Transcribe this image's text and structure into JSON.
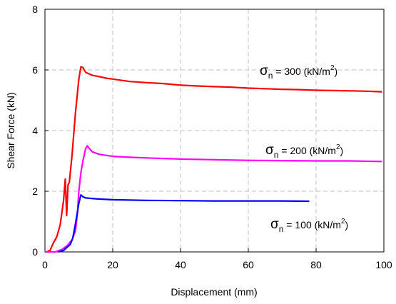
{
  "chart_data": {
    "type": "line",
    "title": "",
    "xlabel": "Displacement (mm)",
    "ylabel": "Shear Force (kN)",
    "xlim": [
      0,
      100
    ],
    "ylim": [
      0,
      8
    ],
    "xticks": [
      "0",
      "20",
      "40",
      "60",
      "80",
      "100"
    ],
    "yticks": [
      "0",
      "2",
      "4",
      "6",
      "8"
    ],
    "grid": true,
    "series": [
      {
        "annotation": {
          "symbol": "σ",
          "subscript": "n",
          "text": " = 300 (kN/m",
          "sup": "2",
          "close": ")"
        },
        "color": "#ff0000",
        "points": [
          [
            0.5,
            0
          ],
          [
            1.5,
            0.05
          ],
          [
            2.5,
            0.3
          ],
          [
            3.5,
            0.5
          ],
          [
            4.5,
            0.9
          ],
          [
            5.5,
            1.7
          ],
          [
            6.0,
            2.4
          ],
          [
            6.4,
            1.2
          ],
          [
            6.8,
            2.2
          ],
          [
            7.2,
            2.3
          ],
          [
            8,
            3.2
          ],
          [
            9,
            4.6
          ],
          [
            10,
            5.7
          ],
          [
            10.6,
            6.1
          ],
          [
            11.2,
            6.08
          ],
          [
            12,
            5.92
          ],
          [
            14,
            5.82
          ],
          [
            16,
            5.78
          ],
          [
            18,
            5.73
          ],
          [
            20,
            5.7
          ],
          [
            25,
            5.62
          ],
          [
            30,
            5.58
          ],
          [
            35,
            5.55
          ],
          [
            40,
            5.5
          ],
          [
            45,
            5.47
          ],
          [
            50,
            5.45
          ],
          [
            55,
            5.43
          ],
          [
            60,
            5.4
          ],
          [
            65,
            5.38
          ],
          [
            70,
            5.36
          ],
          [
            75,
            5.35
          ],
          [
            80,
            5.33
          ],
          [
            85,
            5.32
          ],
          [
            90,
            5.31
          ],
          [
            95,
            5.3
          ],
          [
            99.5,
            5.28
          ]
        ]
      },
      {
        "annotation": {
          "symbol": "σ",
          "subscript": "n",
          "text": " = 200 (kN/m",
          "sup": "2",
          "close": ")"
        },
        "color": "#ff00ff",
        "points": [
          [
            0,
            0
          ],
          [
            3,
            0
          ],
          [
            5,
            0.08
          ],
          [
            6.5,
            0.2
          ],
          [
            8,
            0.4
          ],
          [
            9,
            0.7
          ],
          [
            9.6,
            1.3
          ],
          [
            10,
            2.0
          ],
          [
            10.6,
            2.6
          ],
          [
            11.2,
            3.0
          ],
          [
            12,
            3.4
          ],
          [
            12.5,
            3.5
          ],
          [
            13,
            3.42
          ],
          [
            14,
            3.3
          ],
          [
            16,
            3.22
          ],
          [
            20,
            3.15
          ],
          [
            25,
            3.12
          ],
          [
            30,
            3.1
          ],
          [
            40,
            3.06
          ],
          [
            50,
            3.04
          ],
          [
            60,
            3.02
          ],
          [
            70,
            3.01
          ],
          [
            80,
            3.0
          ],
          [
            90,
            3.0
          ],
          [
            99.5,
            2.98
          ]
        ]
      },
      {
        "annotation": {
          "symbol": "σ",
          "subscript": "n",
          "text": " = 100 (kN/m",
          "sup": "2",
          "close": ")"
        },
        "color": "#0000ff",
        "points": [
          [
            4,
            0
          ],
          [
            5.5,
            0.05
          ],
          [
            6.5,
            0.15
          ],
          [
            7.5,
            0.25
          ],
          [
            8.2,
            0.45
          ],
          [
            8.8,
            0.8
          ],
          [
            9.4,
            1.2
          ],
          [
            10,
            1.6
          ],
          [
            10.6,
            1.88
          ],
          [
            11.2,
            1.82
          ],
          [
            12,
            1.78
          ],
          [
            15,
            1.75
          ],
          [
            20,
            1.72
          ],
          [
            30,
            1.7
          ],
          [
            40,
            1.69
          ],
          [
            50,
            1.68
          ],
          [
            60,
            1.68
          ],
          [
            70,
            1.68
          ],
          [
            78,
            1.67
          ]
        ]
      }
    ]
  }
}
